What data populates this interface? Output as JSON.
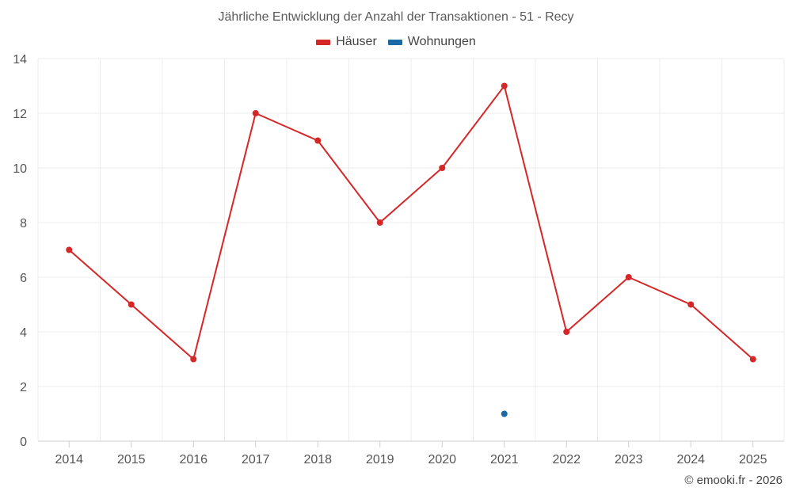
{
  "title": "Jährliche Entwicklung der Anzahl der Transaktionen - 51 - Recy",
  "credit": "© emooki.fr - 2026",
  "chart_data": {
    "type": "line",
    "x": [
      "2014",
      "2015",
      "2016",
      "2017",
      "2018",
      "2019",
      "2020",
      "2021",
      "2022",
      "2023",
      "2024",
      "2025"
    ],
    "series": [
      {
        "name": "Häuser",
        "color": "#d62728",
        "values": [
          7,
          5,
          3,
          12,
          11,
          8,
          10,
          13,
          4,
          6,
          5,
          3
        ]
      },
      {
        "name": "Wohnungen",
        "color": "#1a6aa6",
        "values": [
          null,
          null,
          null,
          null,
          null,
          null,
          null,
          1,
          null,
          null,
          null,
          null
        ]
      }
    ],
    "ylim": [
      0,
      14
    ],
    "yticks": [
      0,
      2,
      4,
      6,
      8,
      10,
      12,
      14
    ],
    "grid": true,
    "legend_position": "top-center"
  }
}
